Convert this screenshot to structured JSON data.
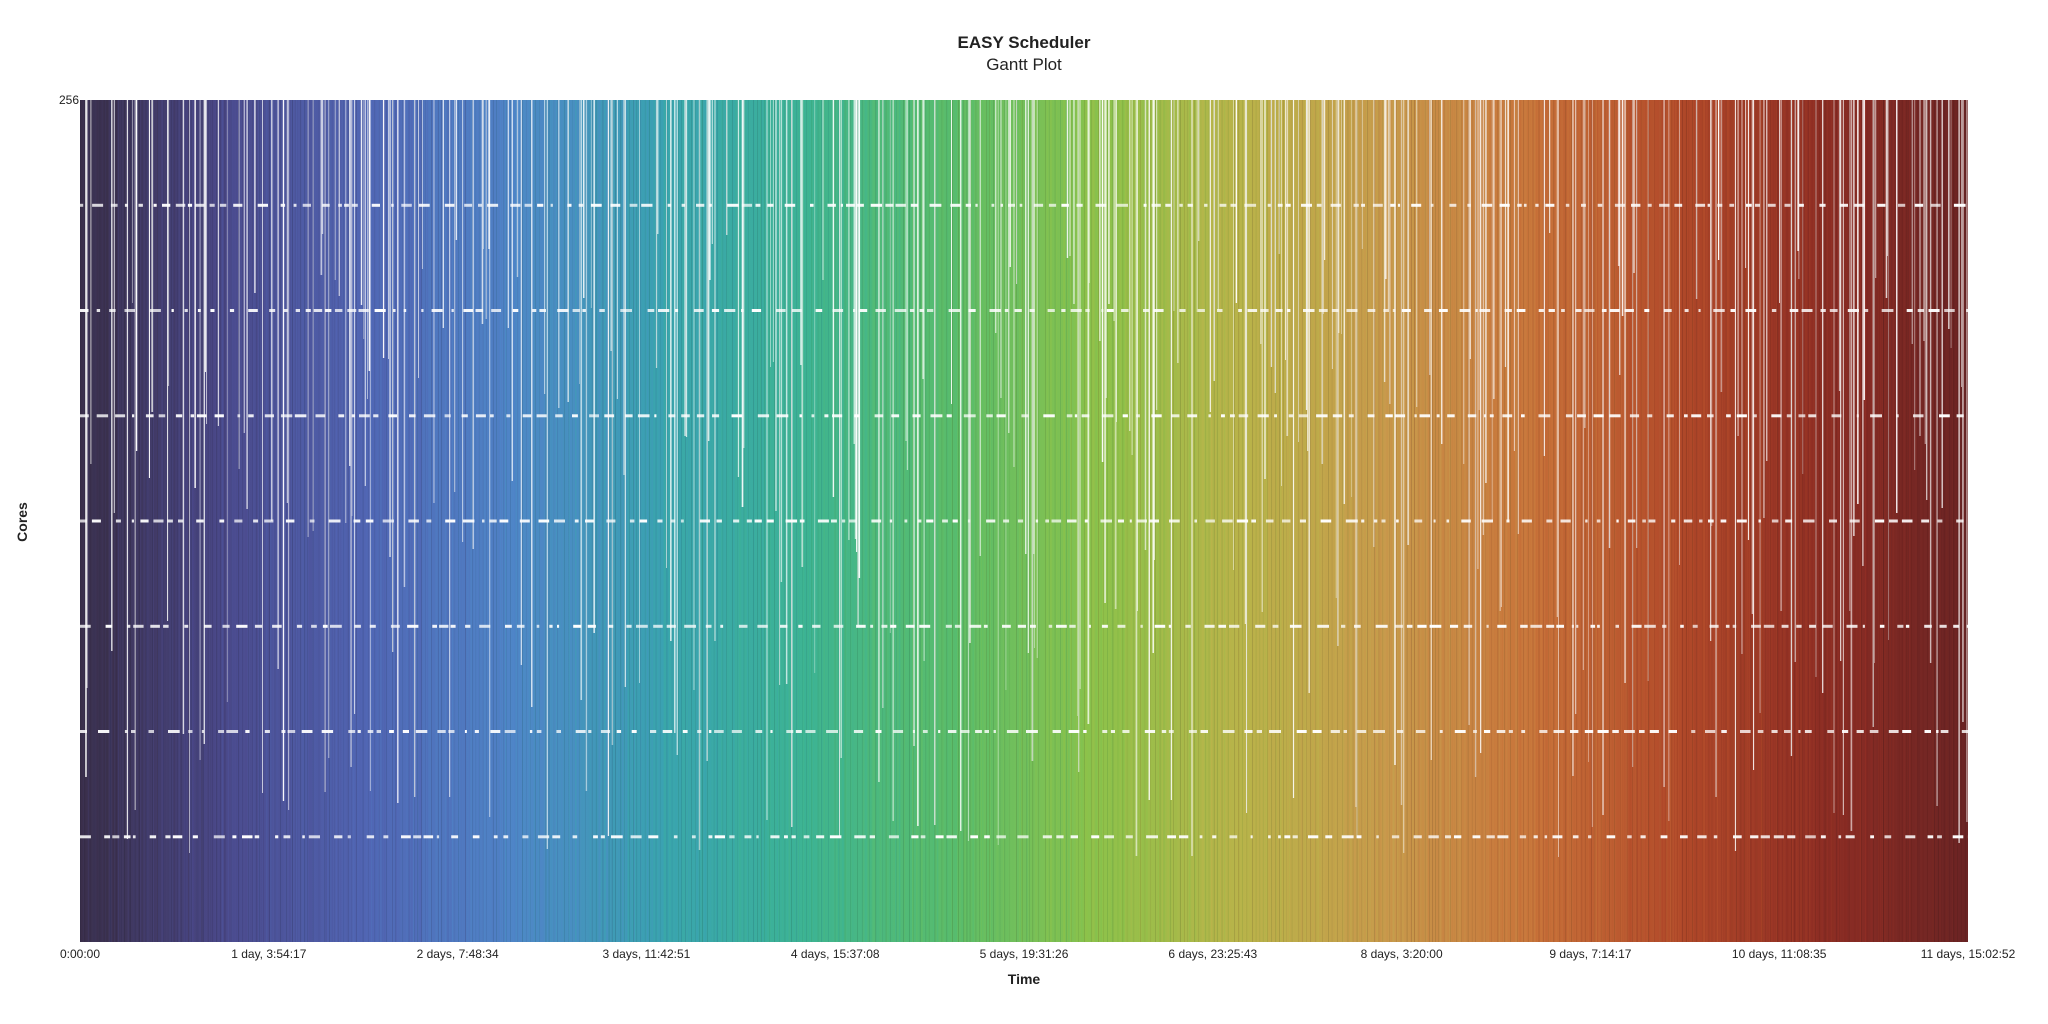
{
  "chart_data": {
    "type": "gantt",
    "title": "EASY Scheduler",
    "subtitle": "Gantt Plot",
    "xlabel": "Time",
    "ylabel": "Cores",
    "ylim": [
      0,
      256
    ],
    "y_tick_labels": [
      "256"
    ],
    "x_ticks": [
      {
        "seconds": 0,
        "label": "0:00:00"
      },
      {
        "seconds": 100457,
        "label": "1 day, 3:54:17"
      },
      {
        "seconds": 200914,
        "label": "2 days, 7:48:34"
      },
      {
        "seconds": 301371,
        "label": "3 days, 11:42:51"
      },
      {
        "seconds": 401828,
        "label": "4 days, 15:37:08"
      },
      {
        "seconds": 502286,
        "label": "5 days, 19:31:26"
      },
      {
        "seconds": 602743,
        "label": "6 days, 23:25:43"
      },
      {
        "seconds": 703200,
        "label": "8 days, 3:20:00"
      },
      {
        "seconds": 803657,
        "label": "9 days, 7:14:17"
      },
      {
        "seconds": 904115,
        "label": "10 days, 11:08:35"
      },
      {
        "seconds": 1004572,
        "label": "11 days, 15:02:52"
      }
    ],
    "xlim_seconds": [
      0,
      1004572
    ],
    "core_rows": 8,
    "cores_per_row": 32,
    "colormap_stops": [
      "#3a2f4a",
      "#4b4a8c",
      "#5166b4",
      "#4f86c8",
      "#3aa4b0",
      "#3db493",
      "#5bbd6a",
      "#8dc24a",
      "#b9b44a",
      "#c89a4c",
      "#c8733a",
      "#b24a2a",
      "#8f2e24",
      "#6a2424"
    ],
    "grid": false,
    "legend": "none"
  }
}
